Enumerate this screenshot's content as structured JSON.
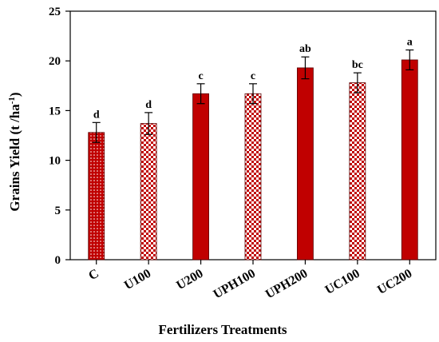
{
  "chart_data": {
    "type": "bar",
    "xlabel": "Fertilizers Treatments",
    "ylabel_main": "Grains Yield (t /ha",
    "ylabel_sup": "-1",
    "ylabel_close": ")",
    "ylim": [
      0,
      25
    ],
    "yticks": [
      0,
      5,
      10,
      15,
      20,
      25
    ],
    "grid": false,
    "categories": [
      "C",
      "U100",
      "U200",
      "UPH100",
      "UPH200",
      "UC100",
      "UC200"
    ],
    "values": [
      12.8,
      13.7,
      16.7,
      16.7,
      19.3,
      17.8,
      20.1
    ],
    "errors": [
      1.0,
      1.1,
      1.0,
      1.0,
      1.1,
      1.0,
      1.0
    ],
    "significance": [
      "d",
      "d",
      "c",
      "c",
      "ab",
      "bc",
      "a"
    ],
    "fill_patterns": [
      "dotted",
      "checkered",
      "solid",
      "checkered",
      "solid",
      "checkered",
      "solid"
    ],
    "colors": {
      "bar": "#c00000",
      "bar_stroke": "#5a0000",
      "axis": "#000000"
    }
  }
}
